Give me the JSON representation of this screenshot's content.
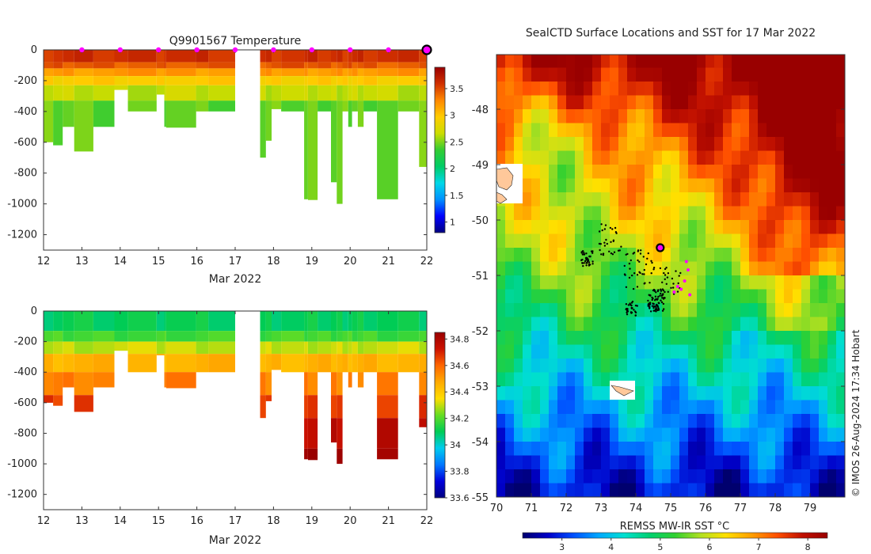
{
  "colors": {
    "tempStops": [
      "#000080",
      "#0000ff",
      "#0090ff",
      "#00d8e8",
      "#00cc66",
      "#33cc33",
      "#ccdd00",
      "#ffcc00",
      "#ff8800",
      "#d03000",
      "#990000"
    ],
    "salStops": [
      "#000080",
      "#0000dd",
      "#0077ff",
      "#00ccee",
      "#00cc55",
      "#66dd22",
      "#ffdd00",
      "#ffaa00",
      "#ff6600",
      "#cc1100",
      "#990000"
    ],
    "sstStops": [
      "#00006e",
      "#0000c8",
      "#0050ff",
      "#00a8ff",
      "#00e0d0",
      "#00d070",
      "#30d030",
      "#b0e020",
      "#ffe000",
      "#ffa000",
      "#ff5000",
      "#c01000",
      "#990000"
    ],
    "profileMarker": "#ff00ff",
    "currentMarker": "#000000",
    "land": "#ffc89a"
  },
  "chart_data": [
    {
      "type": "heatmap",
      "id": "temperature-section",
      "title": "Q9901567  Temperature",
      "xlabel": "Mar 2022",
      "x_ticks": [
        12,
        13,
        14,
        15,
        16,
        17,
        18,
        19,
        20,
        21,
        22
      ],
      "xlim": [
        12,
        22
      ],
      "ylim": [
        -1300,
        0
      ],
      "y_ticks": [
        0,
        -200,
        -400,
        -600,
        -800,
        -1000,
        -1200
      ],
      "colorbar": {
        "min": 0.8,
        "max": 3.9,
        "ticks": [
          1,
          1.5,
          2,
          2.5,
          3,
          3.5
        ]
      },
      "profile_markers": [
        13,
        14,
        15,
        16,
        17,
        18,
        19,
        20,
        21
      ],
      "current_marker": 22,
      "bands": [
        {
          "depth": 0,
          "value": 3.6
        },
        {
          "depth": 80,
          "value": 3.45
        },
        {
          "depth": 120,
          "value": 3.2
        },
        {
          "depth": 170,
          "value": 2.95
        },
        {
          "depth": 230,
          "value": 2.65
        },
        {
          "depth": 330,
          "value": 2.45
        },
        {
          "depth": 1000,
          "value": 2.35
        }
      ]
    },
    {
      "type": "heatmap",
      "id": "salinity-section",
      "title": "",
      "xlabel": "Mar 2022",
      "x_ticks": [
        12,
        13,
        14,
        15,
        16,
        17,
        18,
        19,
        20,
        21,
        22
      ],
      "xlim": [
        12,
        22
      ],
      "ylim": [
        -1300,
        0
      ],
      "y_ticks": [
        0,
        -200,
        -400,
        -600,
        -800,
        -1000,
        -1200
      ],
      "colorbar": {
        "min": 33.6,
        "max": 34.85,
        "ticks": [
          33.6,
          33.8,
          34,
          34.2,
          34.4,
          34.6,
          34.8
        ]
      },
      "bands": [
        {
          "depth": 0,
          "value": 34.1
        },
        {
          "depth": 130,
          "value": 34.18
        },
        {
          "depth": 200,
          "value": 34.3
        },
        {
          "depth": 280,
          "value": 34.45
        },
        {
          "depth": 400,
          "value": 34.55
        },
        {
          "depth": 550,
          "value": 34.66
        },
        {
          "depth": 700,
          "value": 34.76
        },
        {
          "depth": 900,
          "value": 34.82
        }
      ]
    },
    {
      "type": "heatmap",
      "id": "sst-map",
      "title": "SealCTD Surface Locations and SST for 17 Mar 2022",
      "xlabel": "",
      "x_ticks": [
        70,
        71,
        72,
        73,
        74,
        75,
        76,
        77,
        78,
        79
      ],
      "xlim": [
        70,
        80
      ],
      "y_ticks": [
        -48,
        -49,
        -50,
        -51,
        -52,
        -53,
        -54,
        -55
      ],
      "ylim": [
        -55,
        -47
      ],
      "colorbar": {
        "label": "REMSS MW-IR SST °C",
        "min": 2.2,
        "max": 8.4,
        "ticks": [
          3,
          4,
          5,
          6,
          7,
          8
        ]
      },
      "current_location": {
        "lon": 74.7,
        "lat": -50.5
      },
      "recent_locations": [
        {
          "lon": 75.45,
          "lat": -50.75
        },
        {
          "lon": 75.5,
          "lat": -50.9
        },
        {
          "lon": 75.4,
          "lat": -51.1
        },
        {
          "lon": 75.3,
          "lat": -51.25
        },
        {
          "lon": 75.1,
          "lat": -51.3
        },
        {
          "lon": 75.55,
          "lat": -51.35
        },
        {
          "lon": 75.2,
          "lat": -51.2
        }
      ]
    }
  ],
  "casts": [
    {
      "start": 12.0,
      "end": 12.25,
      "depth": 600
    },
    {
      "start": 12.25,
      "end": 12.5,
      "depth": 620
    },
    {
      "start": 12.5,
      "end": 12.8,
      "depth": 500
    },
    {
      "start": 12.8,
      "end": 13.3,
      "depth": 660
    },
    {
      "start": 13.3,
      "end": 13.85,
      "depth": 500
    },
    {
      "start": 13.85,
      "end": 14.2,
      "depth": 260
    },
    {
      "start": 14.2,
      "end": 14.95,
      "depth": 400
    },
    {
      "start": 14.95,
      "end": 15.15,
      "depth": 290
    },
    {
      "start": 15.15,
      "end": 15.2,
      "depth": 500
    },
    {
      "start": 15.2,
      "end": 15.98,
      "depth": 505
    },
    {
      "start": 15.98,
      "end": 16.3,
      "depth": 400
    },
    {
      "start": 16.3,
      "end": 17.0,
      "depth": 400
    },
    {
      "start": 17.65,
      "end": 17.8,
      "depth": 700
    },
    {
      "start": 17.8,
      "end": 17.95,
      "depth": 590
    },
    {
      "start": 17.95,
      "end": 18.2,
      "depth": 385
    },
    {
      "start": 18.2,
      "end": 18.8,
      "depth": 400
    },
    {
      "start": 18.8,
      "end": 18.9,
      "depth": 970
    },
    {
      "start": 18.9,
      "end": 19.15,
      "depth": 975
    },
    {
      "start": 19.15,
      "end": 19.5,
      "depth": 400
    },
    {
      "start": 19.5,
      "end": 19.65,
      "depth": 860
    },
    {
      "start": 19.65,
      "end": 19.8,
      "depth": 1000
    },
    {
      "start": 19.8,
      "end": 19.95,
      "depth": 400
    },
    {
      "start": 19.95,
      "end": 20.05,
      "depth": 500
    },
    {
      "start": 20.05,
      "end": 20.2,
      "depth": 400
    },
    {
      "start": 20.2,
      "end": 20.35,
      "depth": 500
    },
    {
      "start": 20.35,
      "end": 20.7,
      "depth": 400
    },
    {
      "start": 20.7,
      "end": 21.25,
      "depth": 970
    },
    {
      "start": 21.25,
      "end": 21.8,
      "depth": 400
    },
    {
      "start": 21.8,
      "end": 22.05,
      "depth": 760
    }
  ],
  "credit": "© IMOS 26-Aug-2024 17:34 Hobart"
}
